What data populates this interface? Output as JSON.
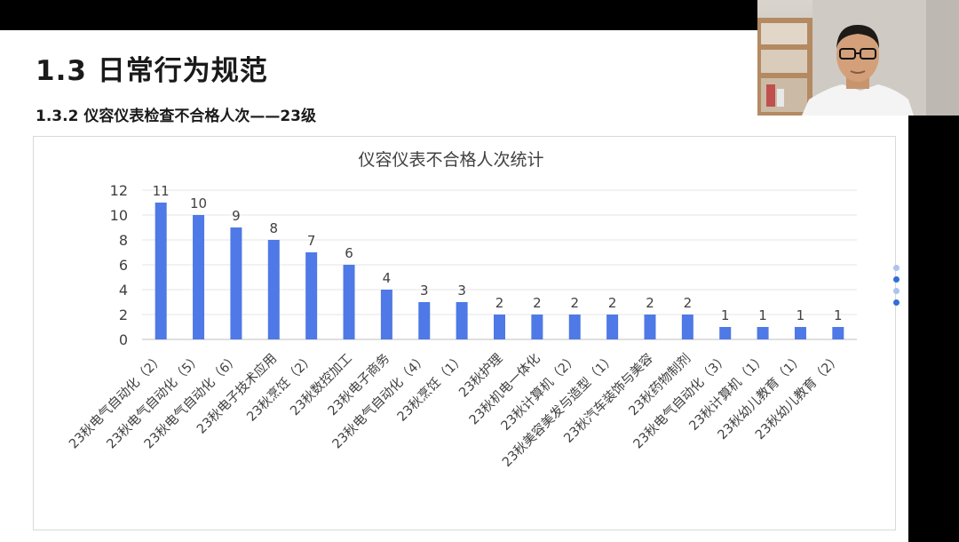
{
  "slide": {
    "title": "1.3 日常行为规范",
    "subtitle": "1.3.2 仪容仪表检查不合格人次——23级"
  },
  "chart_data": {
    "type": "bar",
    "title": "仪容仪表不合格人次统计",
    "categories": [
      "23秋电气自动化（2）",
      "23秋电气自动化（5）",
      "23秋电气自动化（6）",
      "23秋电子技术应用",
      "23秋烹饪（2）",
      "23秋数控加工",
      "23秋电子商务",
      "23秋电气自动化（4）",
      "23秋烹饪（1）",
      "23秋护理",
      "23秋机电一体化",
      "23秋计算机（2）",
      "23秋美容美发与造型（1）",
      "23秋汽车装饰与美容",
      "23秋药物制剂",
      "23秋电气自动化（3）",
      "23秋计算机（1）",
      "23秋幼儿教育（1）",
      "23秋幼儿教育（2）"
    ],
    "values": [
      11,
      10,
      9,
      8,
      7,
      6,
      4,
      3,
      3,
      2,
      2,
      2,
      2,
      2,
      2,
      1,
      1,
      1,
      1
    ],
    "ylim": [
      0,
      12
    ],
    "yticks": [
      0,
      2,
      4,
      6,
      8,
      10,
      12
    ],
    "grid": true,
    "bar_color": "#4e79e6",
    "xlabel": "",
    "ylabel": ""
  },
  "colors": {
    "dot_light": "#a9c4f2",
    "dot_dark": "#2f6fd6"
  },
  "nav_dots": [
    {
      "state": "light"
    },
    {
      "state": "dark"
    },
    {
      "state": "light"
    },
    {
      "state": "dark"
    }
  ]
}
